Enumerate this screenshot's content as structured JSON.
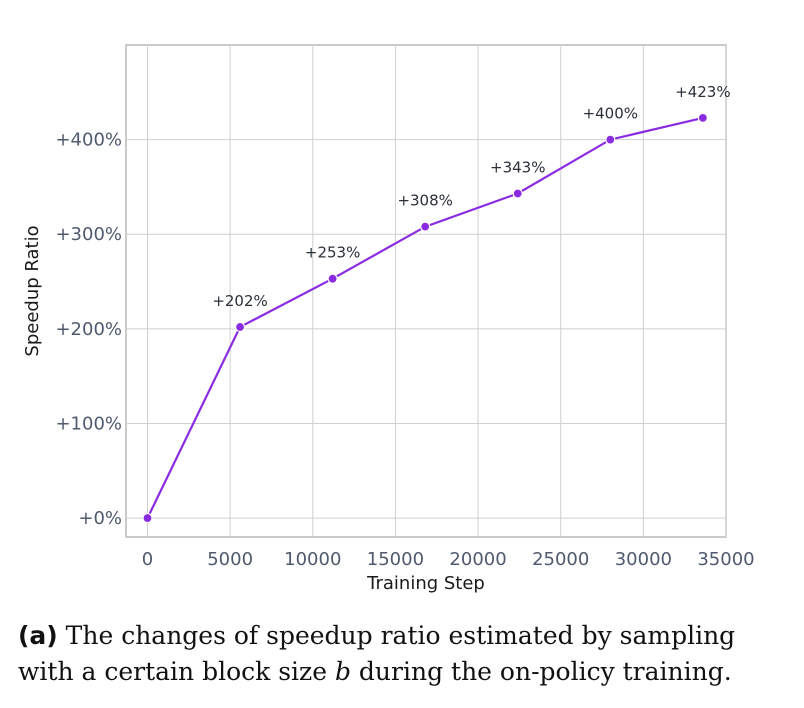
{
  "chart_data": {
    "type": "line",
    "xlabel": "Training Step",
    "ylabel": "Speedup Ratio",
    "xlim": [
      -1300,
      35000
    ],
    "ylim": [
      -20,
      500
    ],
    "x_ticks": [
      0,
      5000,
      10000,
      15000,
      20000,
      25000,
      30000,
      35000
    ],
    "x_tick_labels": [
      "0",
      "5000",
      "10000",
      "15000",
      "20000",
      "25000",
      "30000",
      "35000"
    ],
    "y_ticks": [
      0,
      100,
      200,
      300,
      400
    ],
    "y_tick_labels": [
      "+0%",
      "+100%",
      "+200%",
      "+300%",
      "+400%"
    ],
    "grid": true,
    "series": [
      {
        "x": [
          0,
          5600,
          11200,
          16800,
          22400,
          28000,
          33600
        ],
        "y": [
          0,
          202,
          253,
          308,
          343,
          400,
          423
        ],
        "labels": [
          "",
          "+202%",
          "+253%",
          "+308%",
          "+343%",
          "+400%",
          "+423%"
        ]
      }
    ],
    "colors": {
      "line": "#8a2be2",
      "grid": "#d0d0d0",
      "frame": "#b8b8b8"
    }
  },
  "caption": {
    "tag": "(a)",
    "text_before_var": " The changes of speedup ratio estimated by sampling with a certain block size ",
    "var": "b",
    "text_after_var": " during the on-policy training."
  }
}
